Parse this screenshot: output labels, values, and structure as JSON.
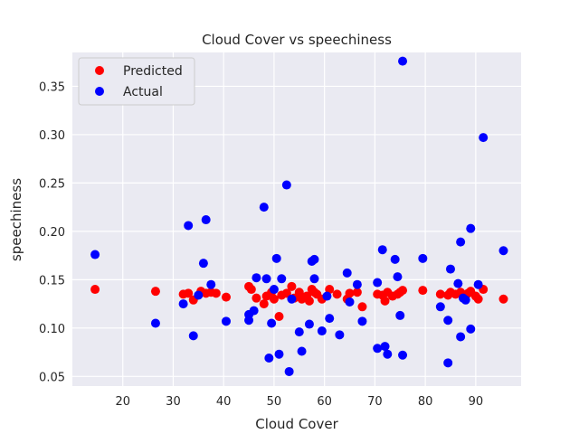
{
  "chart_data": {
    "type": "scatter",
    "title": "Cloud Cover vs speechiness",
    "xlabel": "Cloud Cover",
    "ylabel": "speechiness",
    "xlim": [
      10,
      99
    ],
    "ylim": [
      0.04,
      0.385
    ],
    "xticks": [
      20,
      30,
      40,
      50,
      60,
      70,
      80,
      90
    ],
    "yticks": [
      0.05,
      0.1,
      0.15,
      0.2,
      0.25,
      0.3,
      0.35
    ],
    "ytick_labels": [
      "0.05",
      "0.10",
      "0.15",
      "0.20",
      "0.25",
      "0.30",
      "0.35"
    ],
    "grid": true,
    "legend_position": "top-left",
    "background": "#eaeaf2",
    "series": [
      {
        "name": "Predicted",
        "color": "#ff0000",
        "points": [
          [
            14.5,
            0.14
          ],
          [
            26.5,
            0.138
          ],
          [
            32.0,
            0.135
          ],
          [
            33.0,
            0.136
          ],
          [
            34.0,
            0.129
          ],
          [
            35.5,
            0.138
          ],
          [
            36.5,
            0.136
          ],
          [
            37.5,
            0.137
          ],
          [
            38.5,
            0.136
          ],
          [
            40.5,
            0.132
          ],
          [
            45.0,
            0.143
          ],
          [
            45.5,
            0.14
          ],
          [
            46.5,
            0.131
          ],
          [
            48.0,
            0.125
          ],
          [
            48.5,
            0.133
          ],
          [
            49.5,
            0.137
          ],
          [
            50.0,
            0.13
          ],
          [
            51.0,
            0.112
          ],
          [
            51.5,
            0.134
          ],
          [
            52.5,
            0.136
          ],
          [
            53.5,
            0.143
          ],
          [
            54.0,
            0.131
          ],
          [
            55.0,
            0.137
          ],
          [
            55.5,
            0.13
          ],
          [
            56.5,
            0.133
          ],
          [
            57.0,
            0.128
          ],
          [
            57.5,
            0.14
          ],
          [
            58.0,
            0.137
          ],
          [
            58.5,
            0.135
          ],
          [
            59.5,
            0.13
          ],
          [
            61.0,
            0.14
          ],
          [
            62.5,
            0.135
          ],
          [
            64.5,
            0.13
          ],
          [
            65.0,
            0.136
          ],
          [
            66.5,
            0.137
          ],
          [
            67.5,
            0.122
          ],
          [
            70.5,
            0.135
          ],
          [
            71.5,
            0.134
          ],
          [
            72.0,
            0.128
          ],
          [
            72.5,
            0.137
          ],
          [
            73.5,
            0.133
          ],
          [
            74.5,
            0.135
          ],
          [
            75.0,
            0.137
          ],
          [
            75.5,
            0.139
          ],
          [
            79.5,
            0.139
          ],
          [
            83.0,
            0.135
          ],
          [
            84.5,
            0.134
          ],
          [
            85.0,
            0.137
          ],
          [
            86.0,
            0.135
          ],
          [
            87.0,
            0.137
          ],
          [
            88.0,
            0.134
          ],
          [
            88.5,
            0.136
          ],
          [
            89.0,
            0.138
          ],
          [
            90.0,
            0.133
          ],
          [
            90.5,
            0.13
          ],
          [
            91.5,
            0.14
          ],
          [
            95.5,
            0.13
          ]
        ]
      },
      {
        "name": "Actual",
        "color": "#0000ff",
        "points": [
          [
            14.5,
            0.176
          ],
          [
            26.5,
            0.105
          ],
          [
            32.0,
            0.125
          ],
          [
            33.0,
            0.206
          ],
          [
            34.0,
            0.092
          ],
          [
            35.0,
            0.134
          ],
          [
            36.0,
            0.167
          ],
          [
            36.5,
            0.212
          ],
          [
            37.5,
            0.145
          ],
          [
            40.5,
            0.107
          ],
          [
            45.0,
            0.114
          ],
          [
            45.0,
            0.108
          ],
          [
            46.0,
            0.118
          ],
          [
            46.5,
            0.152
          ],
          [
            48.0,
            0.225
          ],
          [
            48.5,
            0.151
          ],
          [
            49.0,
            0.069
          ],
          [
            49.5,
            0.105
          ],
          [
            50.0,
            0.14
          ],
          [
            50.5,
            0.172
          ],
          [
            51.0,
            0.073
          ],
          [
            51.5,
            0.151
          ],
          [
            52.5,
            0.248
          ],
          [
            53.0,
            0.055
          ],
          [
            53.5,
            0.13
          ],
          [
            55.0,
            0.096
          ],
          [
            55.5,
            0.076
          ],
          [
            57.0,
            0.104
          ],
          [
            57.5,
            0.169
          ],
          [
            58.0,
            0.151
          ],
          [
            58.0,
            0.171
          ],
          [
            59.5,
            0.097
          ],
          [
            60.5,
            0.133
          ],
          [
            61.0,
            0.11
          ],
          [
            63.0,
            0.093
          ],
          [
            64.5,
            0.157
          ],
          [
            65.0,
            0.127
          ],
          [
            66.5,
            0.145
          ],
          [
            67.5,
            0.107
          ],
          [
            70.5,
            0.079
          ],
          [
            70.5,
            0.147
          ],
          [
            71.5,
            0.181
          ],
          [
            72.0,
            0.081
          ],
          [
            72.5,
            0.073
          ],
          [
            74.0,
            0.171
          ],
          [
            74.5,
            0.153
          ],
          [
            75.0,
            0.113
          ],
          [
            75.5,
            0.072
          ],
          [
            75.5,
            0.376
          ],
          [
            79.5,
            0.172
          ],
          [
            83.0,
            0.122
          ],
          [
            84.5,
            0.108
          ],
          [
            84.5,
            0.064
          ],
          [
            85.0,
            0.161
          ],
          [
            86.5,
            0.146
          ],
          [
            87.0,
            0.189
          ],
          [
            87.0,
            0.091
          ],
          [
            87.5,
            0.131
          ],
          [
            88.0,
            0.129
          ],
          [
            89.0,
            0.099
          ],
          [
            89.0,
            0.203
          ],
          [
            90.5,
            0.145
          ],
          [
            91.5,
            0.297
          ],
          [
            95.5,
            0.18
          ]
        ]
      }
    ]
  }
}
